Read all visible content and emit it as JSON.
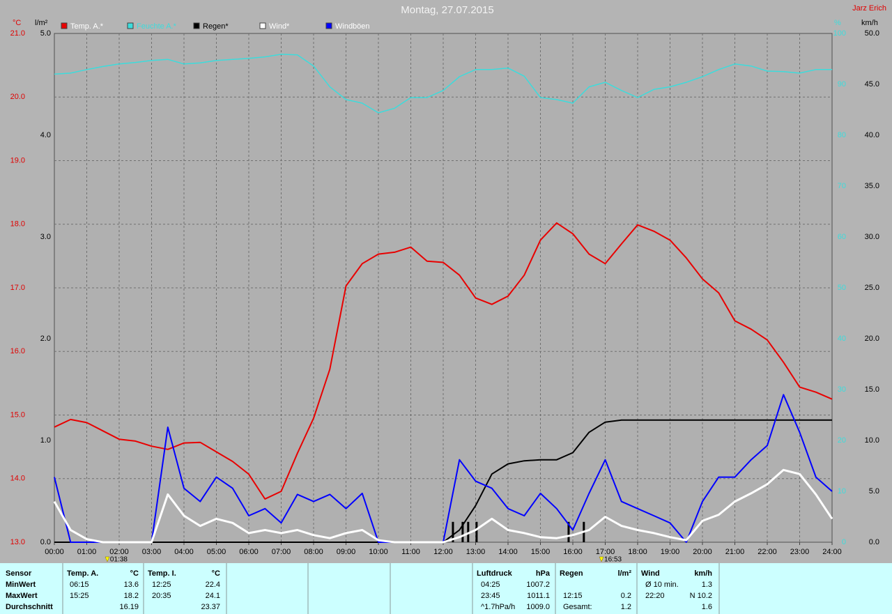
{
  "chart_data": {
    "type": "line",
    "title": "Montag, 27.07.2015",
    "author": "Jarz Erich",
    "units": {
      "y": "°C",
      "y2": "l/m²",
      "y3": "%",
      "y4": "km/h"
    },
    "x": [
      0,
      0.5,
      1,
      1.5,
      2,
      2.5,
      3,
      3.5,
      4,
      4.5,
      5,
      5.5,
      6,
      6.5,
      7,
      7.5,
      8,
      8.5,
      9,
      9.5,
      10,
      10.5,
      11,
      11.5,
      12,
      12.5,
      13,
      13.5,
      14,
      14.5,
      15,
      15.5,
      16,
      16.5,
      17,
      17.5,
      18,
      18.5,
      19,
      19.5,
      20,
      20.5,
      21,
      21.5,
      22,
      22.5,
      23,
      23.5,
      24
    ],
    "xlim": [
      0,
      24
    ],
    "xticks": [
      {
        "value": 0,
        "label": "00:00"
      },
      {
        "value": 1,
        "label": "01:00"
      },
      {
        "value": 2,
        "label": "02:00"
      },
      {
        "value": 3,
        "label": "03:00"
      },
      {
        "value": 4,
        "label": "04:00"
      },
      {
        "value": 5,
        "label": "05:00"
      },
      {
        "value": 6,
        "label": "06:00"
      },
      {
        "value": 7,
        "label": "07:00"
      },
      {
        "value": 8,
        "label": "08:00"
      },
      {
        "value": 9,
        "label": "09:00"
      },
      {
        "value": 10,
        "label": "10:00"
      },
      {
        "value": 11,
        "label": "11:00"
      },
      {
        "value": 12,
        "label": "12:00"
      },
      {
        "value": 13,
        "label": "13:00"
      },
      {
        "value": 14,
        "label": "14:00"
      },
      {
        "value": 15,
        "label": "15:00"
      },
      {
        "value": 16,
        "label": "16:00"
      },
      {
        "value": 17,
        "label": "17:00"
      },
      {
        "value": 18,
        "label": "18:00"
      },
      {
        "value": 19,
        "label": "19:00"
      },
      {
        "value": 20,
        "label": "20:00"
      },
      {
        "value": 21,
        "label": "21:00"
      },
      {
        "value": 22,
        "label": "22:00"
      },
      {
        "value": 23,
        "label": "23:00"
      },
      {
        "value": 24,
        "label": "24:00"
      }
    ],
    "ylim": [
      13,
      21
    ],
    "yticks": [
      {
        "value": 13,
        "label": "13.0"
      },
      {
        "value": 14,
        "label": "14.0"
      },
      {
        "value": 15,
        "label": "15.0"
      },
      {
        "value": 16,
        "label": "16.0"
      },
      {
        "value": 17,
        "label": "17.0"
      },
      {
        "value": 18,
        "label": "18.0"
      },
      {
        "value": 19,
        "label": "19.0"
      },
      {
        "value": 20,
        "label": "20.0"
      },
      {
        "value": 21,
        "label": "21.0"
      }
    ],
    "y2lim": [
      0,
      5
    ],
    "y2ticks": [
      {
        "value": 0,
        "label": "0.0"
      },
      {
        "value": 1,
        "label": "1.0"
      },
      {
        "value": 2,
        "label": "2.0"
      },
      {
        "value": 3,
        "label": "3.0"
      },
      {
        "value": 4,
        "label": "4.0"
      },
      {
        "value": 5,
        "label": "5.0"
      }
    ],
    "y3lim": [
      0,
      100
    ],
    "y3ticks": [
      0,
      10,
      20,
      30,
      40,
      50,
      60,
      70,
      80,
      90,
      100
    ],
    "y4lim": [
      0,
      50
    ],
    "y4ticks": [
      {
        "value": 0,
        "label": "0.0"
      },
      {
        "value": 5,
        "label": "5.0"
      },
      {
        "value": 10,
        "label": "10.0"
      },
      {
        "value": 15,
        "label": "15.0"
      },
      {
        "value": 20,
        "label": "20.0"
      },
      {
        "value": 25,
        "label": "25.0"
      },
      {
        "value": 30,
        "label": "30.0"
      },
      {
        "value": 35,
        "label": "35.0"
      },
      {
        "value": 40,
        "label": "40.0"
      },
      {
        "value": 45,
        "label": "45.0"
      },
      {
        "value": 50,
        "label": "50.0"
      }
    ],
    "grid": true,
    "series": [
      {
        "name": "Temp. A.*",
        "color": "#e80000",
        "axis": "y",
        "values": [
          14.81,
          14.93,
          14.88,
          14.75,
          14.62,
          14.59,
          14.51,
          14.46,
          14.56,
          14.57,
          14.42,
          14.27,
          14.07,
          13.68,
          13.8,
          14.4,
          14.95,
          15.72,
          17.03,
          17.38,
          17.53,
          17.56,
          17.64,
          17.42,
          17.4,
          17.2,
          16.84,
          16.74,
          16.87,
          17.2,
          17.75,
          18.02,
          17.85,
          17.53,
          17.38,
          17.69,
          17.99,
          17.89,
          17.75,
          17.47,
          17.14,
          16.92,
          16.48,
          16.35,
          16.18,
          15.83,
          15.44,
          15.36,
          15.25
        ]
      },
      {
        "name": "Feuchte A.*",
        "color": "#3cdcdc",
        "axis": "y3",
        "values": [
          92,
          92.2,
          92.9,
          93.5,
          94,
          94.3,
          94.7,
          94.9,
          94,
          94.2,
          94.7,
          94.9,
          95.1,
          95.4,
          95.9,
          95.8,
          93.6,
          89.5,
          87,
          86.3,
          84.4,
          85.3,
          87.4,
          87.4,
          88.8,
          91.5,
          92.9,
          92.9,
          93.2,
          91.6,
          87.4,
          87,
          86.3,
          89.5,
          90.4,
          88.8,
          87.4,
          89,
          89.5,
          90.4,
          91.5,
          92.9,
          94,
          93.6,
          92.6,
          92.5,
          92.2,
          92.9,
          92.9
        ]
      },
      {
        "name": "Regen*",
        "color": "#000000",
        "axis": "y2",
        "values": [
          0,
          0,
          0,
          0,
          0,
          0,
          0,
          0,
          0,
          0,
          0,
          0,
          0,
          0,
          0,
          0,
          0,
          0,
          0,
          0,
          0,
          0,
          0,
          0,
          0,
          0.12,
          0.36,
          0.67,
          0.77,
          0.8,
          0.81,
          0.81,
          0.88,
          1.08,
          1.18,
          1.2,
          1.2,
          1.2,
          1.2,
          1.2,
          1.2,
          1.2,
          1.2,
          1.2,
          1.2,
          1.2,
          1.2,
          1.2,
          1.2
        ],
        "bars": {
          "x": [
            12.3,
            12.6,
            12.77,
            13.03,
            15.87,
            16.34
          ],
          "values": [
            0.2,
            0.2,
            0.2,
            0.2,
            0.2,
            0.2
          ]
        }
      },
      {
        "name": "Wind*",
        "color": "#ffffff",
        "axis": "y4",
        "values": [
          4.0,
          1.2,
          0.3,
          0,
          0,
          0,
          0,
          4.7,
          2.6,
          1.6,
          2.3,
          1.9,
          0.9,
          1.2,
          0.9,
          1.2,
          0.7,
          0.4,
          0.9,
          1.2,
          0.2,
          0,
          0,
          0,
          0,
          0.5,
          1.2,
          2.3,
          1.2,
          0.9,
          0.5,
          0.4,
          0.7,
          1.2,
          2.5,
          1.6,
          1.2,
          0.9,
          0.5,
          0.2,
          2.1,
          2.7,
          4.0,
          4.8,
          5.7,
          7.1,
          6.7,
          4.7,
          2.3
        ]
      },
      {
        "name": "Windböen",
        "color": "#0000ff",
        "axis": "y4",
        "values": [
          6.4,
          0,
          0,
          0,
          0,
          0,
          0,
          11.3,
          5.3,
          4.0,
          6.4,
          5.3,
          2.6,
          3.3,
          1.9,
          4.7,
          4.0,
          4.7,
          3.3,
          4.8,
          0,
          0,
          0,
          0,
          0,
          8.1,
          6.0,
          5.3,
          3.3,
          2.6,
          4.8,
          3.3,
          1.2,
          4.8,
          8.1,
          4.0,
          3.3,
          2.6,
          1.9,
          0,
          4.0,
          6.4,
          6.4,
          8.1,
          9.5,
          14.5,
          10.8,
          6.4,
          5.0
        ]
      }
    ],
    "annotations": [
      {
        "x": 1.633,
        "label": "01:38"
      },
      {
        "x": 16.883,
        "label": "16:53"
      }
    ]
  },
  "stats": {
    "blocks": [
      {
        "header": "Sensor",
        "rows": [
          [
            "MinWert"
          ],
          [
            "MaxWert"
          ],
          [
            "Durchschnitt"
          ]
        ]
      },
      {
        "header": "Temp. A.",
        "unit": "°C",
        "rows": [
          [
            "06:15",
            "13.6"
          ],
          [
            "15:25",
            "18.2"
          ],
          [
            null,
            "16.19"
          ]
        ]
      },
      {
        "header": "Temp. I.",
        "unit": "°C",
        "rows": [
          [
            "12:25",
            "22.4"
          ],
          [
            "20:35",
            "24.1"
          ],
          [
            null,
            "23.37"
          ]
        ]
      },
      {
        "header": "Luftdruck",
        "unit": "hPa",
        "rows": [
          [
            "04:25",
            "1007.2"
          ],
          [
            "23:45",
            "1011.1"
          ],
          [
            "^1.7hPa/h",
            "1009.0"
          ]
        ]
      },
      {
        "header": "Regen",
        "unit": "l/m²",
        "rows": [
          [
            null,
            null
          ],
          [
            "12:15",
            "0.2"
          ],
          [
            "Gesamt:",
            "1.2"
          ]
        ]
      },
      {
        "header": "Wind",
        "unit": "km/h",
        "rows": [
          [
            "Ø 10 min.",
            "1.3"
          ],
          [
            "22:20",
            "N 10.2"
          ],
          [
            null,
            "1.6"
          ]
        ]
      }
    ]
  }
}
